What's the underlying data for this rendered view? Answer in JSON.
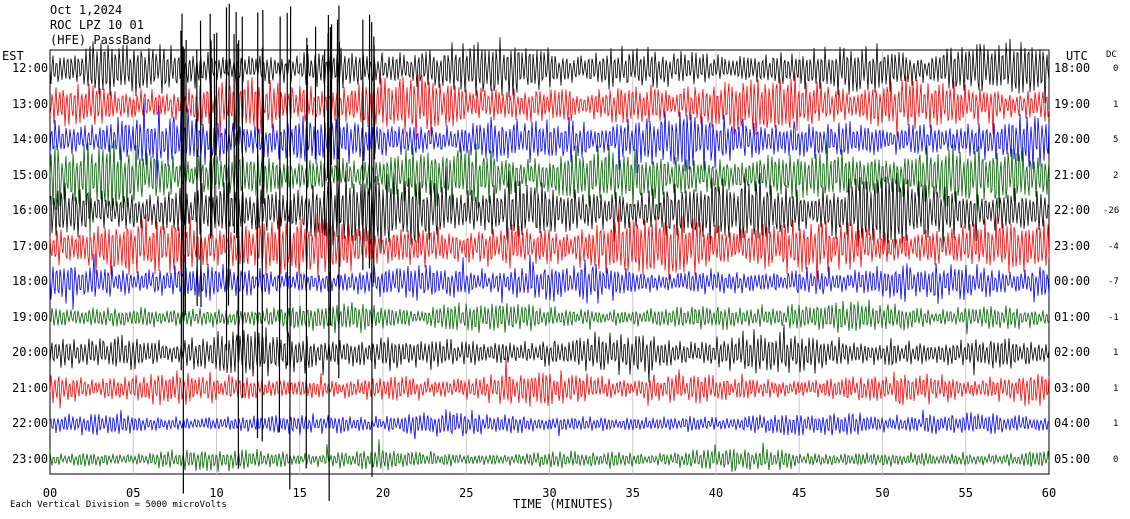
{
  "header": {
    "date": "Oct 1,2024",
    "station": "ROC LPZ 10 01",
    "filter": "(HFE) PassBand"
  },
  "tz_left": "EST",
  "tz_right": "UTC",
  "dc_header": "DC",
  "footer": "Each Vertical Division = 5000 microVolts",
  "colors": {
    "black": "#000000",
    "red": "#ff0000",
    "blue": "#0000ff",
    "green": "#006400"
  },
  "chart_data": {
    "type": "helicorder",
    "xlabel": "TIME (MINUTES)",
    "xlim": [
      0,
      60
    ],
    "x_ticks": [
      "00",
      "05",
      "10",
      "15",
      "20",
      "25",
      "30",
      "35",
      "40",
      "45",
      "50",
      "55",
      "60"
    ],
    "traces": [
      {
        "left": "12:00",
        "right": "18:00",
        "dc": "0",
        "color": "black"
      },
      {
        "left": "13:00",
        "right": "19:00",
        "dc": "1",
        "color": "red"
      },
      {
        "left": "14:00",
        "right": "20:00",
        "dc": "5",
        "color": "blue"
      },
      {
        "left": "15:00",
        "right": "21:00",
        "dc": "2",
        "color": "green"
      },
      {
        "left": "16:00",
        "right": "22:00",
        "dc": "-26",
        "color": "black"
      },
      {
        "left": "17:00",
        "right": "23:00",
        "dc": "-4",
        "color": "red"
      },
      {
        "left": "18:00",
        "right": "00:00",
        "dc": "-7",
        "color": "blue"
      },
      {
        "left": "19:00",
        "right": "01:00",
        "dc": "-1",
        "color": "green"
      },
      {
        "left": "20:00",
        "right": "02:00",
        "dc": "1",
        "color": "black"
      },
      {
        "left": "21:00",
        "right": "03:00",
        "dc": "1",
        "color": "red"
      },
      {
        "left": "22:00",
        "right": "04:00",
        "dc": "1",
        "color": "blue"
      },
      {
        "left": "23:00",
        "right": "05:00",
        "dc": "0",
        "color": "green"
      }
    ]
  }
}
